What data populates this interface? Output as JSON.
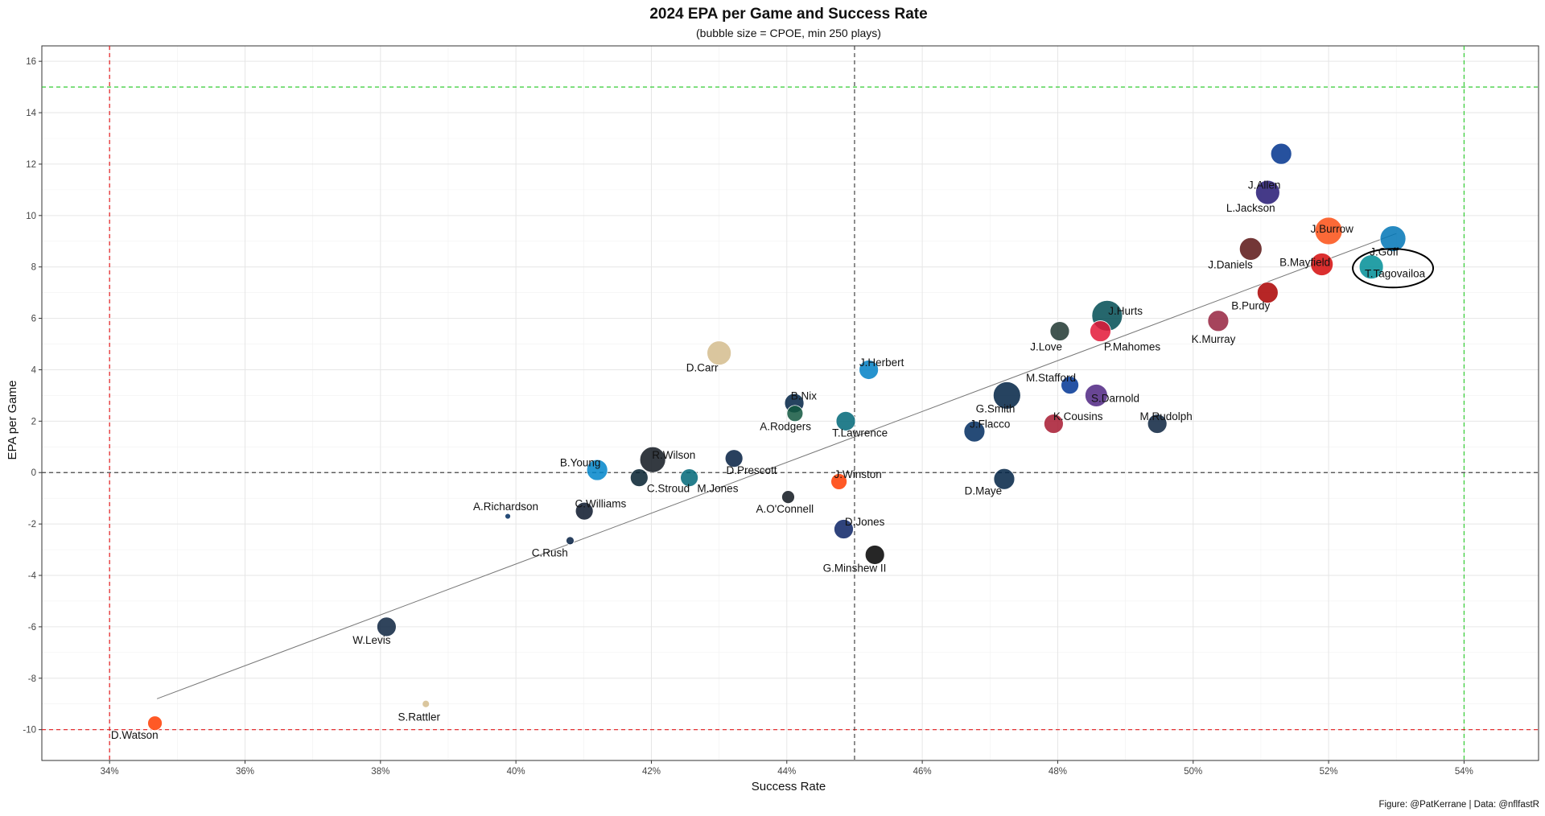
{
  "chart_data": {
    "type": "scatter",
    "title": "2024 EPA per Game and Success Rate",
    "subtitle": "(bubble size = CPOE, min 250 plays)",
    "xlabel": "Success Rate",
    "ylabel": "EPA per Game",
    "caption": "Figure: @PatKerrane | Data: @nflfastR",
    "xlim": [
      0.33,
      0.551
    ],
    "ylim": [
      -11.2,
      16.6
    ],
    "x_ticks": [
      0.34,
      0.36,
      0.38,
      0.4,
      0.42,
      0.44,
      0.46,
      0.48,
      0.5,
      0.52,
      0.54
    ],
    "x_tick_labels": [
      "34%",
      "36%",
      "38%",
      "40%",
      "42%",
      "44%",
      "46%",
      "48%",
      "50%",
      "52%",
      "54%"
    ],
    "y_ticks": [
      -10,
      -8,
      -6,
      -4,
      -2,
      0,
      2,
      4,
      6,
      8,
      10,
      12,
      14,
      16
    ],
    "y_tick_labels": [
      "-10",
      "-8",
      "-6",
      "-4",
      "-2",
      "0",
      "2",
      "4",
      "6",
      "8",
      "10",
      "12",
      "14",
      "16"
    ],
    "grid": true,
    "reference_lines": {
      "mean_x": 0.45,
      "mean_y": 0,
      "low_x": 0.34,
      "high_x": 0.54,
      "low_y": -10,
      "high_y": 15
    },
    "trend_line": {
      "x": [
        0.347,
        0.53
      ],
      "y": [
        -8.8,
        9.3
      ]
    },
    "highlight_ellipse": {
      "x": 0.5295,
      "y": 7.95
    },
    "points": [
      {
        "label": "J.Allen",
        "x": 0.513,
        "y": 12.4,
        "size": 13,
        "color": "#00338D",
        "lx": 0.5105,
        "ly": 11.2
      },
      {
        "label": "L.Jackson",
        "x": 0.511,
        "y": 10.9,
        "size": 15,
        "color": "#241773",
        "lx": 0.5085,
        "ly": 10.3
      },
      {
        "label": "J.Burrow",
        "x": 0.52,
        "y": 9.4,
        "size": 17,
        "color": "#FB4F14",
        "lx": 0.5205,
        "ly": 9.5
      },
      {
        "label": "J.Goff",
        "x": 0.5295,
        "y": 9.1,
        "size": 16,
        "color": "#0076B6",
        "lx": 0.5282,
        "ly": 8.6
      },
      {
        "label": "B.Mayfield",
        "x": 0.519,
        "y": 8.1,
        "size": 14,
        "color": "#D50A0A",
        "lx": 0.5165,
        "ly": 8.2
      },
      {
        "label": "T.Tagovailoa",
        "x": 0.5263,
        "y": 8.0,
        "size": 15,
        "color": "#008E97",
        "lx": 0.5298,
        "ly": 7.75
      },
      {
        "label": "J.Daniels",
        "x": 0.5085,
        "y": 8.7,
        "size": 14,
        "color": "#5A1414",
        "lx": 0.5055,
        "ly": 8.1
      },
      {
        "label": "B.Purdy",
        "x": 0.511,
        "y": 7.0,
        "size": 13,
        "color": "#AA0000",
        "lx": 0.5085,
        "ly": 6.5
      },
      {
        "label": "J.Hurts",
        "x": 0.4873,
        "y": 6.1,
        "size": 19,
        "color": "#004C54",
        "lx": 0.49,
        "ly": 6.3
      },
      {
        "label": "K.Murray",
        "x": 0.5037,
        "y": 5.9,
        "size": 13,
        "color": "#97233F",
        "lx": 0.503,
        "ly": 5.2
      },
      {
        "label": "J.Love",
        "x": 0.4803,
        "y": 5.5,
        "size": 12,
        "color": "#203731",
        "lx": 0.4783,
        "ly": 4.9
      },
      {
        "label": "P.Mahomes",
        "x": 0.4863,
        "y": 5.5,
        "size": 13,
        "color": "#E31837",
        "lx": 0.491,
        "ly": 4.9
      },
      {
        "label": "D.Carr",
        "x": 0.43,
        "y": 4.65,
        "size": 15,
        "color": "#D3BC8D",
        "lx": 0.4275,
        "ly": 4.1
      },
      {
        "label": "J.Herbert",
        "x": 0.4521,
        "y": 4.0,
        "size": 12,
        "color": "#0080C6",
        "lx": 0.454,
        "ly": 4.3
      },
      {
        "label": "M.Stafford",
        "x": 0.4818,
        "y": 3.4,
        "size": 11,
        "color": "#003594",
        "lx": 0.479,
        "ly": 3.7
      },
      {
        "label": "G.Smith",
        "x": 0.4725,
        "y": 3.0,
        "size": 17,
        "color": "#002244",
        "lx": 0.4708,
        "ly": 2.5
      },
      {
        "label": "S.Darnold",
        "x": 0.4857,
        "y": 3.0,
        "size": 14,
        "color": "#4F2683",
        "lx": 0.4885,
        "ly": 2.9
      },
      {
        "label": "B.Nix",
        "x": 0.4411,
        "y": 2.7,
        "size": 12,
        "color": "#002244",
        "lx": 0.4425,
        "ly": 3.0
      },
      {
        "label": "A.Rodgers",
        "x": 0.4412,
        "y": 2.3,
        "size": 10,
        "color": "#125740",
        "lx": 0.4398,
        "ly": 1.8
      },
      {
        "label": "T.Lawrence",
        "x": 0.4487,
        "y": 2.0,
        "size": 12,
        "color": "#006778",
        "lx": 0.4508,
        "ly": 1.55
      },
      {
        "label": "J.Flacco",
        "x": 0.4677,
        "y": 1.6,
        "size": 13,
        "color": "#002C5F",
        "lx": 0.47,
        "ly": 1.9
      },
      {
        "label": "K.Cousins",
        "x": 0.4794,
        "y": 1.9,
        "size": 12,
        "color": "#A71930",
        "lx": 0.483,
        "ly": 2.2
      },
      {
        "label": "M.Rudolph",
        "x": 0.4947,
        "y": 1.9,
        "size": 12,
        "color": "#0C2340",
        "lx": 0.496,
        "ly": 2.2
      },
      {
        "label": "R.Wilson",
        "x": 0.4202,
        "y": 0.5,
        "size": 16,
        "color": "#101820",
        "lx": 0.4233,
        "ly": 0.7
      },
      {
        "label": "D.Prescott",
        "x": 0.4322,
        "y": 0.55,
        "size": 11,
        "color": "#041E42",
        "lx": 0.4348,
        "ly": 0.1
      },
      {
        "label": "B.Young",
        "x": 0.412,
        "y": 0.1,
        "size": 13,
        "color": "#0085CA",
        "lx": 0.4095,
        "ly": 0.4
      },
      {
        "label": "C.Stroud",
        "x": 0.4182,
        "y": -0.2,
        "size": 11,
        "color": "#03202F",
        "lx": 0.4225,
        "ly": -0.6
      },
      {
        "label": "M.Jones",
        "x": 0.4256,
        "y": -0.2,
        "size": 11,
        "color": "#006778",
        "lx": 0.4298,
        "ly": -0.6
      },
      {
        "label": "J.Winston",
        "x": 0.4477,
        "y": -0.35,
        "size": 10,
        "color": "#FF3C00",
        "lx": 0.4505,
        "ly": -0.05
      },
      {
        "label": "D.Maye",
        "x": 0.4721,
        "y": -0.25,
        "size": 13,
        "color": "#002244",
        "lx": 0.469,
        "ly": -0.7
      },
      {
        "label": "A.O'Connell",
        "x": 0.4402,
        "y": -0.95,
        "size": 8,
        "color": "#101820",
        "lx": 0.4397,
        "ly": -1.4
      },
      {
        "label": "A.Richardson",
        "x": 0.3988,
        "y": -1.7,
        "size": 3.5,
        "color": "#002C5F",
        "lx": 0.3985,
        "ly": -1.3
      },
      {
        "label": "C.Williams",
        "x": 0.4101,
        "y": -1.5,
        "size": 11,
        "color": "#0B162A",
        "lx": 0.4125,
        "ly": -1.2
      },
      {
        "label": "D.Jones",
        "x": 0.4484,
        "y": -2.2,
        "size": 12,
        "color": "#0B2265",
        "lx": 0.4515,
        "ly": -1.9
      },
      {
        "label": "C.Rush",
        "x": 0.408,
        "y": -2.65,
        "size": 5,
        "color": "#041E42",
        "lx": 0.405,
        "ly": -3.1
      },
      {
        "label": "G.Minshew II",
        "x": 0.453,
        "y": -3.2,
        "size": 12,
        "color": "#000000",
        "lx": 0.45,
        "ly": -3.7
      },
      {
        "label": "W.Levis",
        "x": 0.3809,
        "y": -6.0,
        "size": 12,
        "color": "#0C2340",
        "lx": 0.3787,
        "ly": -6.5
      },
      {
        "label": "S.Rattler",
        "x": 0.3867,
        "y": -9.0,
        "size": 4.5,
        "color": "#D3BC8D",
        "lx": 0.3857,
        "ly": -9.5
      },
      {
        "label": "D.Watson",
        "x": 0.3467,
        "y": -9.75,
        "size": 9,
        "color": "#FF3C00",
        "lx": 0.3437,
        "ly": -10.2
      }
    ]
  }
}
